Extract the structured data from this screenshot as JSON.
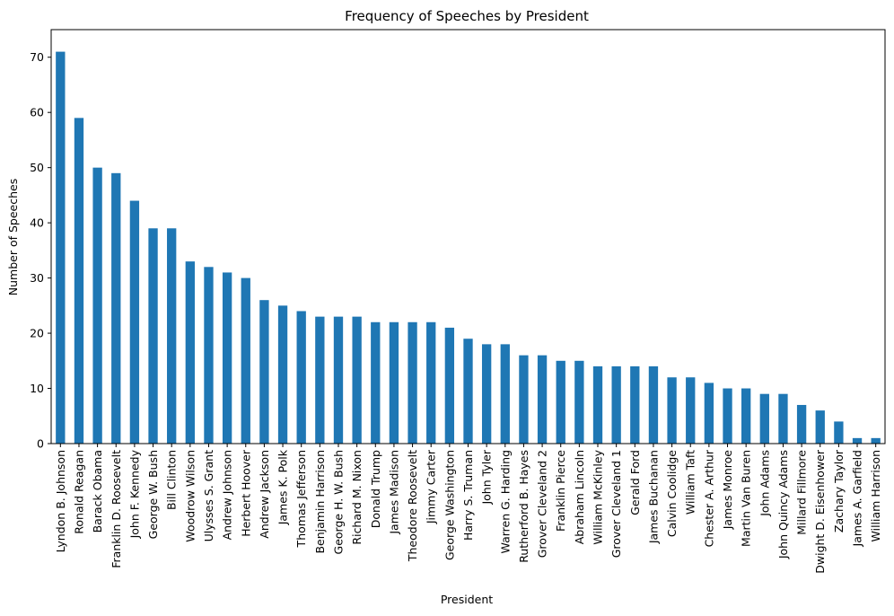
{
  "chart_data": {
    "type": "bar",
    "title": "Frequency of Speeches by President",
    "xlabel": "President",
    "ylabel": "Number of Speeches",
    "ylim": [
      0,
      75
    ],
    "yticks": [
      0,
      10,
      20,
      30,
      40,
      50,
      60,
      70
    ],
    "grid": false,
    "bar_color": "#1f77b4",
    "categories": [
      "Lyndon B. Johnson",
      "Ronald Reagan",
      "Barack Obama",
      "Franklin D. Roosevelt",
      "John F. Kennedy",
      "George W. Bush",
      "Bill Clinton",
      "Woodrow Wilson",
      "Ulysses S. Grant",
      "Andrew Johnson",
      "Herbert Hoover",
      "Andrew Jackson",
      "James K. Polk",
      "Thomas Jefferson",
      "Benjamin Harrison",
      "George H. W. Bush",
      "Richard M. Nixon",
      "Donald Trump",
      "James Madison",
      "Theodore Roosevelt",
      "Jimmy Carter",
      "George Washington",
      "Harry S. Truman",
      "John Tyler",
      "Warren G. Harding",
      "Rutherford B. Hayes",
      "Grover Cleveland 2",
      "Franklin Pierce",
      "Abraham Lincoln",
      "William McKinley",
      "Grover Cleveland 1",
      "Gerald Ford",
      "James Buchanan",
      "Calvin Coolidge",
      "William Taft",
      "Chester A. Arthur",
      "James Monroe",
      "Martin Van Buren",
      "John Adams",
      "John Quincy Adams",
      "Millard Fillmore",
      "Dwight D. Eisenhower",
      "Zachary Taylor",
      "James A. Garfield",
      "William Harrison"
    ],
    "values": [
      71,
      59,
      50,
      49,
      44,
      39,
      39,
      33,
      32,
      31,
      30,
      26,
      25,
      24,
      23,
      23,
      23,
      22,
      22,
      22,
      22,
      21,
      19,
      18,
      18,
      16,
      16,
      15,
      15,
      14,
      14,
      14,
      14,
      12,
      12,
      11,
      10,
      10,
      9,
      9,
      7,
      6,
      4,
      1,
      1
    ]
  }
}
